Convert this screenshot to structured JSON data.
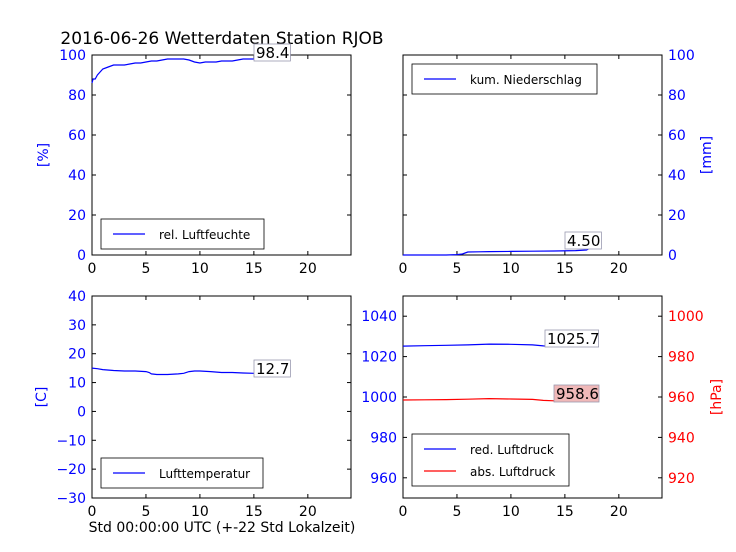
{
  "figure_title": "2016-06-26 Wetterdaten Station RJOB",
  "x_caption": "Std 00:00:00 UTC (+-22 Std Lokalzeit)",
  "colors": {
    "blue": "#0000ff",
    "red": "#ff0000",
    "black": "#000000",
    "box_red": "#f0b8b8"
  },
  "chart_data": [
    {
      "type": "line",
      "panel": "top-left",
      "title": "",
      "xlabel": "",
      "ylabel": "[%]",
      "xlim": [
        0,
        24
      ],
      "xticks": [
        0,
        5,
        10,
        15,
        20
      ],
      "ylim": [
        0,
        100
      ],
      "yticks": [
        0,
        20,
        40,
        60,
        80,
        100
      ],
      "yaxis_side": "left",
      "legend": {
        "placement": "lower-left",
        "entries": [
          "rel. Luftfeuchte"
        ]
      },
      "last_value_label": "98.4",
      "series": [
        {
          "name": "rel. Luftfeuchte",
          "color": "#0000ff",
          "x": [
            0,
            0.1,
            0.3,
            0.5,
            1,
            1.5,
            2,
            2.5,
            3,
            3.5,
            4,
            4.5,
            5,
            5.5,
            6,
            6.5,
            7,
            7.5,
            8,
            8.5,
            9,
            9.5,
            10,
            10.5,
            11,
            11.5,
            12,
            12.5,
            13,
            13.5,
            14,
            14.5,
            15,
            15.5,
            16,
            16.5,
            17,
            17.5,
            18
          ],
          "y": [
            86,
            88,
            88,
            90,
            93,
            94,
            95,
            95,
            95,
            95.5,
            96,
            96,
            96.5,
            97,
            97,
            97.5,
            98,
            98,
            98,
            98,
            97.5,
            96.5,
            96,
            96.5,
            96.5,
            96.5,
            97,
            97,
            97,
            97.5,
            98,
            98,
            98,
            98.5,
            98.5,
            98,
            97.5,
            98,
            98.4
          ]
        }
      ]
    },
    {
      "type": "line",
      "panel": "top-right",
      "title": "",
      "xlabel": "",
      "ylabel": "[mm]",
      "xlim": [
        0,
        24
      ],
      "xticks": [
        0,
        5,
        10,
        15,
        20
      ],
      "ylim": [
        0,
        100
      ],
      "yticks": [
        0,
        20,
        40,
        60,
        80,
        100
      ],
      "yaxis_side": "right",
      "legend": {
        "placement": "upper-left",
        "entries": [
          "kum. Niederschlag"
        ]
      },
      "last_value_label": "4.50",
      "series": [
        {
          "name": "kum. Niederschlag",
          "color": "#0000ff",
          "x": [
            0,
            4,
            5,
            5.5,
            6,
            7,
            8,
            10,
            12,
            14,
            16,
            17,
            17.5,
            18
          ],
          "y": [
            0,
            0,
            0.2,
            0.5,
            1.5,
            1.6,
            1.7,
            1.8,
            1.9,
            2.0,
            2.2,
            2.5,
            4.0,
            4.5
          ]
        }
      ]
    },
    {
      "type": "line",
      "panel": "bottom-left",
      "title": "",
      "xlabel": "",
      "ylabel": "[C]",
      "xlim": [
        0,
        24
      ],
      "xticks": [
        0,
        5,
        10,
        15,
        20
      ],
      "ylim": [
        -30,
        40
      ],
      "yticks": [
        -30,
        -20,
        -10,
        0,
        10,
        20,
        30,
        40
      ],
      "yaxis_side": "left",
      "legend": {
        "placement": "lower-left",
        "entries": [
          "Lufttemperatur"
        ]
      },
      "last_value_label": "12.7",
      "series": [
        {
          "name": "Lufttemperatur",
          "color": "#0000ff",
          "x": [
            0,
            0.5,
            1,
            2,
            3,
            4,
            5,
            5.3,
            5.5,
            6,
            7,
            8,
            8.5,
            9,
            9.5,
            10,
            11,
            12,
            13,
            14,
            15,
            16,
            17,
            18
          ],
          "y": [
            15,
            14.8,
            14.5,
            14.2,
            14,
            14,
            13.8,
            13.5,
            13,
            12.8,
            12.8,
            13,
            13.2,
            13.8,
            14,
            14,
            13.8,
            13.5,
            13.5,
            13.3,
            13.2,
            13,
            12.8,
            12.7
          ]
        }
      ]
    },
    {
      "type": "line",
      "panel": "bottom-right",
      "title": "",
      "xlabel": "",
      "ylabel_right": "[hPa]",
      "xlim": [
        0,
        24
      ],
      "xticks": [
        0,
        5,
        10,
        15,
        20
      ],
      "ylim_left": [
        950,
        1050
      ],
      "yticks_left": [
        960,
        980,
        1000,
        1020,
        1040
      ],
      "ylim_right": [
        910,
        1010
      ],
      "yticks_right": [
        920,
        940,
        960,
        980,
        1000
      ],
      "legend": {
        "placement": "lower-left",
        "entries": [
          "red. Luftdruck",
          "abs. Luftdruck"
        ]
      },
      "series": [
        {
          "name": "red. Luftdruck",
          "color": "#0000ff",
          "axis": "left",
          "last_value_label": "1025.7",
          "x": [
            0,
            2,
            4,
            6,
            8,
            10,
            12,
            13,
            14,
            15,
            16,
            17,
            18
          ],
          "y": [
            1025.2,
            1025.4,
            1025.6,
            1025.8,
            1026.2,
            1026.1,
            1025.8,
            1025.3,
            1025.1,
            1025.3,
            1025.6,
            1025.7,
            1025.7
          ]
        },
        {
          "name": "abs. Luftdruck",
          "color": "#ff0000",
          "axis": "right",
          "last_value_label": "958.6",
          "x": [
            0,
            2,
            4,
            6,
            8,
            10,
            12,
            13,
            14,
            15,
            16,
            17,
            18
          ],
          "y": [
            958.5,
            958.6,
            958.7,
            958.9,
            959.2,
            959.0,
            958.8,
            958.3,
            958.1,
            958.3,
            958.5,
            958.6,
            958.6
          ]
        }
      ]
    }
  ]
}
